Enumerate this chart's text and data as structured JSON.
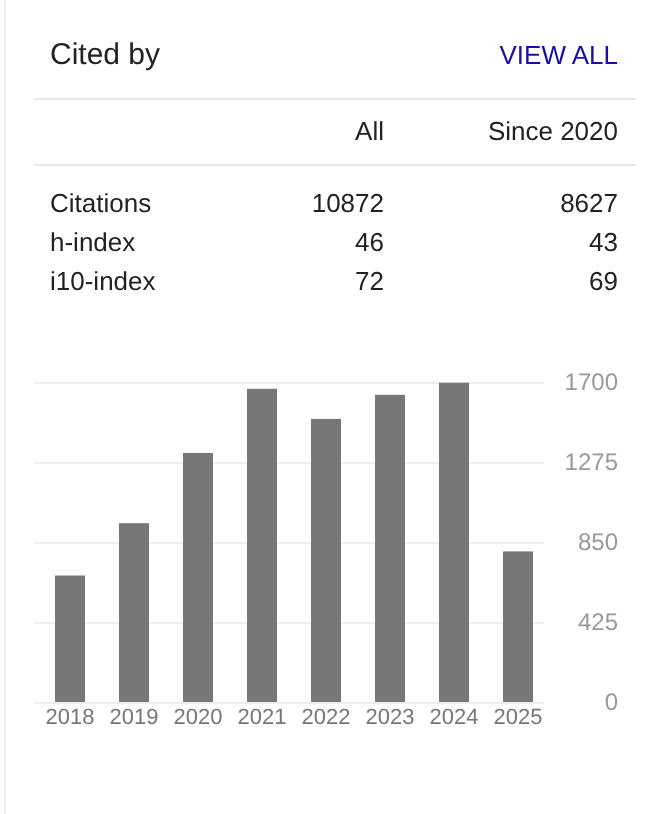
{
  "chart_data": [
    {
      "type": "other",
      "title": "Cited by",
      "annotations": [
        "VIEW ALL",
        "All",
        "Since 2020",
        "Citations",
        "10872",
        "8627",
        "h-index",
        "46",
        "43",
        "i10-index",
        "72",
        "69"
      ]
    },
    {
      "type": "bar",
      "categories": [
        "2018",
        "2019",
        "2020",
        "2021",
        "2022",
        "2023",
        "2024",
        "2025"
      ],
      "values": [
        672,
        950,
        1323,
        1664,
        1504,
        1632,
        1696,
        800
      ],
      "color": "#777777",
      "ylim": [
        0,
        1700
      ],
      "yticks": [
        0,
        425,
        850,
        1275,
        1700
      ],
      "grid": "y"
    }
  ]
}
